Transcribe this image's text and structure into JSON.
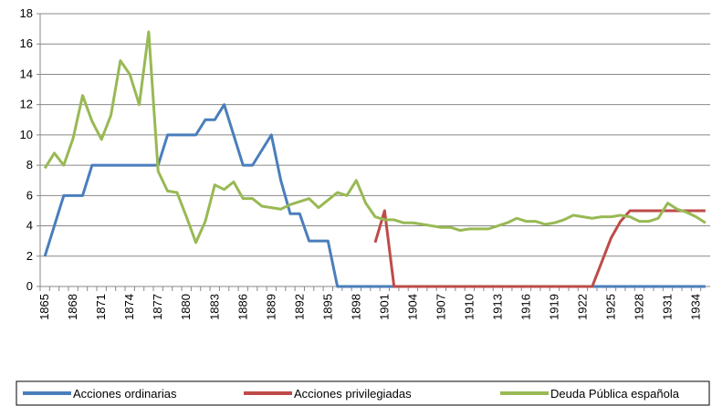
{
  "chart_data": {
    "type": "line",
    "categories": [
      "1865",
      null,
      null,
      "1868",
      null,
      null,
      "1871",
      null,
      null,
      "1874",
      null,
      null,
      "1877",
      null,
      null,
      "1880",
      null,
      null,
      "1883",
      null,
      null,
      "1886",
      null,
      null,
      "1889",
      null,
      null,
      "1892",
      null,
      null,
      "1895",
      null,
      null,
      "1898",
      null,
      null,
      "1901",
      null,
      null,
      "1904",
      null,
      null,
      "1907",
      null,
      null,
      "1910",
      null,
      null,
      "1913",
      null,
      null,
      "1916",
      null,
      null,
      "1919",
      null,
      null,
      "1922",
      null,
      null,
      "1925",
      null,
      null,
      "1928",
      null,
      null,
      "1931",
      null,
      null,
      "1934",
      null
    ],
    "series": [
      {
        "name": "Acciones ordinarias",
        "color": "#4a7ebb",
        "values": [
          2,
          4,
          6,
          6,
          6,
          8,
          8,
          8,
          8,
          8,
          8,
          8,
          8,
          10,
          10,
          10,
          10,
          11,
          11,
          12,
          10,
          8,
          8,
          9,
          10,
          7,
          4.8,
          4.8,
          3,
          3,
          3,
          0,
          0,
          0,
          0,
          0,
          0,
          0,
          0,
          0,
          0,
          0,
          0,
          0,
          0,
          0,
          0,
          0,
          0,
          0,
          0,
          0,
          0,
          0,
          0,
          0,
          0,
          0,
          0,
          0,
          0,
          0,
          0,
          0,
          0,
          0,
          0,
          0,
          0,
          0,
          0
        ]
      },
      {
        "name": "Acciones privilegiadas",
        "color": "#be4b48",
        "values": [
          null,
          null,
          null,
          null,
          null,
          null,
          null,
          null,
          null,
          null,
          null,
          null,
          null,
          null,
          null,
          null,
          null,
          null,
          null,
          null,
          null,
          null,
          null,
          null,
          null,
          null,
          null,
          null,
          null,
          null,
          null,
          null,
          null,
          null,
          null,
          2.9,
          5,
          0,
          0,
          0,
          0,
          0,
          0,
          0,
          0,
          0,
          0,
          0,
          0,
          0,
          0,
          0,
          0,
          0,
          0,
          0,
          0,
          0,
          0,
          1.6,
          3.2,
          4.3,
          5,
          5,
          5,
          5,
          5,
          5,
          5,
          5,
          5
        ]
      },
      {
        "name": "Deuda Pública española",
        "color": "#98b954",
        "values": [
          7.8,
          8.8,
          8,
          9.8,
          12.6,
          10.9,
          9.7,
          11.3,
          14.9,
          14,
          12,
          16.8,
          7.6,
          6.3,
          6.2,
          4.6,
          2.9,
          4.3,
          6.7,
          6.4,
          6.9,
          5.8,
          5.8,
          5.3,
          5.2,
          5.1,
          5.4,
          5.6,
          5.8,
          5.2,
          5.7,
          6.2,
          6,
          7,
          5.5,
          4.6,
          4.4,
          4.4,
          4.2,
          4.2,
          4.1,
          4,
          3.9,
          3.9,
          3.7,
          3.8,
          3.8,
          3.8,
          4,
          4.2,
          4.5,
          4.3,
          4.3,
          4.1,
          4.2,
          4.4,
          4.7,
          4.6,
          4.5,
          4.6,
          4.6,
          4.7,
          4.6,
          4.3,
          4.3,
          4.5,
          5.5,
          5.1,
          4.9,
          4.6,
          4.2
        ]
      }
    ],
    "ylim": [
      0,
      18
    ],
    "yticks": [
      0,
      2,
      4,
      6,
      8,
      10,
      12,
      14,
      16,
      18
    ],
    "grid": true
  }
}
